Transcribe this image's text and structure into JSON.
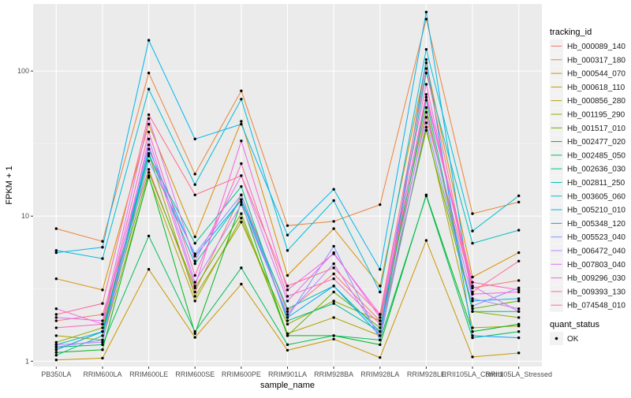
{
  "chart_data": {
    "type": "line",
    "xlabel": "sample_name",
    "ylabel": "FPKM + 1",
    "y_scale": "log10",
    "ylim": [
      0.92,
      290
    ],
    "y_ticks": [
      1,
      10,
      100
    ],
    "y_tick_labels": [
      "1",
      "10",
      "100"
    ],
    "grid": true,
    "background_color": "#ebebeb",
    "categories": [
      "PB350LA",
      "RRIM600LA",
      "RRIM600LE",
      "RRIM600SE",
      "RRIM600PE",
      "RRIM901LA",
      "RRIM928BA",
      "RRIM928LA",
      "RRIM928LE",
      "RRII105LA_Control",
      "RRII105LA_Stressed"
    ],
    "legend_placement": "right",
    "legend_title": "tracking_id",
    "series": [
      {
        "name": "Hb_000089_140",
        "color": "#F8766D",
        "values": [
          1.9,
          2.1,
          21,
          3.0,
          14,
          2.2,
          4.0,
          1.9,
          48,
          3.2,
          3.6
        ]
      },
      {
        "name": "Hb_000317_180",
        "color": "#EC8239",
        "values": [
          8.2,
          6.7,
          97,
          19.5,
          73,
          8.6,
          9.2,
          12.0,
          228,
          10.4,
          12.5
        ]
      },
      {
        "name": "Hb_000544_070",
        "color": "#DB8E00",
        "values": [
          3.7,
          3.1,
          43,
          7.2,
          45,
          3.9,
          8.2,
          3.3,
          114,
          3.8,
          5.6
        ]
      },
      {
        "name": "Hb_000618_110",
        "color": "#C79800",
        "values": [
          1.02,
          1.05,
          4.3,
          1.46,
          3.4,
          1.19,
          1.42,
          1.06,
          6.8,
          1.07,
          1.14
        ]
      },
      {
        "name": "Hb_000856_280",
        "color": "#AEA200",
        "values": [
          1.5,
          1.4,
          18.5,
          2.6,
          9.7,
          1.55,
          2.0,
          1.5,
          41,
          1.7,
          1.75
        ]
      },
      {
        "name": "Hb_001195_290",
        "color": "#8FAA00",
        "values": [
          1.35,
          1.7,
          27,
          2.8,
          9.1,
          1.8,
          2.6,
          1.9,
          56,
          2.2,
          2.0
        ]
      },
      {
        "name": "Hb_001517_010",
        "color": "#64B200",
        "values": [
          1.2,
          1.6,
          20,
          3.2,
          10.4,
          1.5,
          3.0,
          1.7,
          39,
          2.3,
          2.6
        ]
      },
      {
        "name": "Hb_002477_020",
        "color": "#00B81B",
        "values": [
          1.15,
          1.2,
          19,
          1.55,
          12.5,
          1.5,
          1.5,
          1.3,
          14,
          1.6,
          1.8
        ]
      },
      {
        "name": "Hb_002485_050",
        "color": "#00BD5C",
        "values": [
          1.25,
          1.3,
          7.3,
          1.6,
          4.4,
          1.3,
          1.5,
          1.4,
          13.8,
          1.45,
          1.6
        ]
      },
      {
        "name": "Hb_002636_030",
        "color": "#00C08D",
        "values": [
          1.1,
          1.5,
          26,
          6.5,
          16,
          1.9,
          2.5,
          1.6,
          63,
          2.2,
          2.2
        ]
      },
      {
        "name": "Hb_002811_250",
        "color": "#00C0B4",
        "values": [
          1.3,
          1.6,
          27,
          4.7,
          13,
          2.3,
          3.3,
          1.6,
          97,
          6.5,
          8.0
        ]
      },
      {
        "name": "Hb_003605_060",
        "color": "#00BDD4",
        "values": [
          5.8,
          5.1,
          75,
          16.5,
          64,
          5.8,
          12.8,
          3.0,
          141,
          7.9,
          13.8
        ]
      },
      {
        "name": "Hb_005210_010",
        "color": "#00B5EE",
        "values": [
          5.6,
          6.1,
          163,
          34,
          43,
          7.4,
          15.3,
          4.3,
          255,
          2.6,
          2.7
        ]
      },
      {
        "name": "Hb_005348_120",
        "color": "#00A7FF",
        "values": [
          1.2,
          1.6,
          29,
          5.3,
          13,
          2.0,
          3.3,
          1.5,
          120,
          1.5,
          1.45
        ]
      },
      {
        "name": "Hb_005523_040",
        "color": "#7F96FF",
        "values": [
          1.25,
          1.4,
          24,
          5.5,
          14,
          2.0,
          6.2,
          1.4,
          44,
          2.4,
          3.2
        ]
      },
      {
        "name": "Hb_006472_040",
        "color": "#BC81FF",
        "values": [
          1.3,
          1.35,
          34,
          3.5,
          12,
          2.1,
          4.7,
          1.5,
          52,
          2.7,
          2.3
        ]
      },
      {
        "name": "Hb_007803_040",
        "color": "#E26EF7",
        "values": [
          2.0,
          1.9,
          47,
          4.9,
          19,
          2.6,
          5.6,
          2.0,
          66,
          3.3,
          2.2
        ]
      },
      {
        "name": "Hb_009296_030",
        "color": "#F863DF",
        "values": [
          2.3,
          1.8,
          31,
          3.3,
          33,
          3.1,
          5.5,
          2.1,
          81,
          2.9,
          3.0
        ]
      },
      {
        "name": "Hb_009393_130",
        "color": "#FF62BC",
        "values": [
          1.7,
          1.8,
          38,
          3.9,
          23,
          2.8,
          3.7,
          1.8,
          69,
          3.5,
          3.1
        ]
      },
      {
        "name": "Hb_074548_010",
        "color": "#FF6C90",
        "values": [
          2.1,
          2.5,
          50,
          14,
          19,
          3.3,
          4.4,
          2.1,
          104,
          3.0,
          4.9
        ]
      }
    ],
    "legend2_title": "quant_status",
    "legend2_items": [
      "OK"
    ]
  }
}
